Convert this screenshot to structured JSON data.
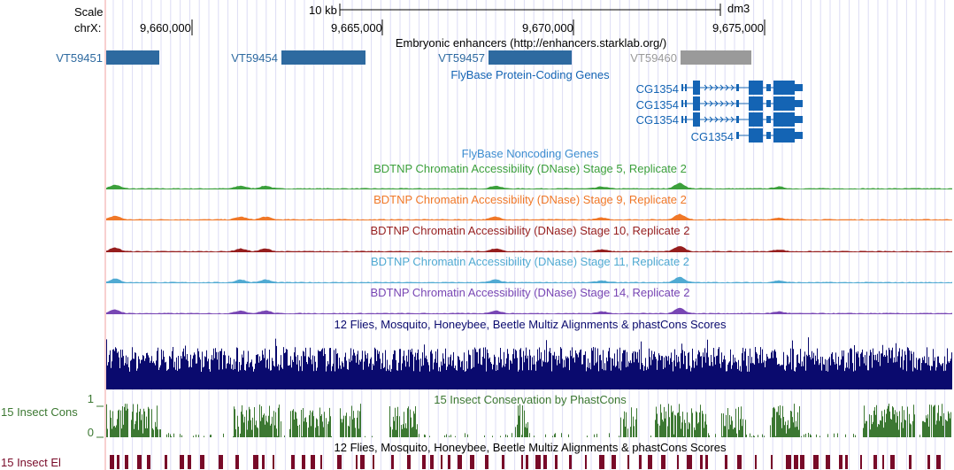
{
  "ruler": {
    "scale_label": "Scale",
    "chrom_label": "chrX:",
    "scale_bar_label": "10 kb",
    "assembly": "dm3",
    "ticks": [
      "9,660,000",
      "9,665,000",
      "9,670,000",
      "9,675,000"
    ]
  },
  "tracks": {
    "enhancers": {
      "title": "Embryonic enhancers (http://enhancers.starklab.org/)",
      "items": [
        {
          "name": "VT59451",
          "color": "#2e6aa0"
        },
        {
          "name": "VT59454",
          "color": "#2e6aa0"
        },
        {
          "name": "VT59457",
          "color": "#2e6aa0"
        },
        {
          "name": "VT59460",
          "color": "#9a9a9a"
        }
      ]
    },
    "coding_genes": {
      "title": "FlyBase Protein-Coding Genes",
      "color": "#1464b4",
      "items": [
        "CG1354",
        "CG1354",
        "CG1354",
        "CG1354"
      ]
    },
    "noncoding_genes": {
      "title": "FlyBase Noncoding Genes",
      "color": "#3c8cd0"
    },
    "dnase": [
      {
        "title": "BDTNP Chromatin Accessibility (DNase) Stage 5, Replicate 2",
        "color": "#3ca03c"
      },
      {
        "title": "BDTNP Chromatin Accessibility (DNase) Stage 9, Replicate 2",
        "color": "#f07828"
      },
      {
        "title": "BDTNP Chromatin Accessibility (DNase) Stage 10, Replicate 2",
        "color": "#961e1e"
      },
      {
        "title": "BDTNP Chromatin Accessibility (DNase) Stage 11, Replicate 2",
        "color": "#50aad2"
      },
      {
        "title": "BDTNP Chromatin Accessibility (DNase) Stage 14, Replicate 2",
        "color": "#7846b4"
      }
    ],
    "multiz": {
      "title": "12 Flies, Mosquito, Honeybee, Beetle Multiz Alignments & phastCons Scores",
      "color": "#0a0a6e"
    },
    "phastcons": {
      "title": "15 Insect Conservation by PhastCons",
      "side_label": "15 Insect Cons",
      "axis_max": "1",
      "axis_min": "0",
      "color": "#3c7832"
    },
    "elements": {
      "title": "12 Flies, Mosquito, Honeybee, Beetle Multiz Alignments & phastCons Scores",
      "side_label": "15 Insect El",
      "color": "#780a28"
    }
  }
}
